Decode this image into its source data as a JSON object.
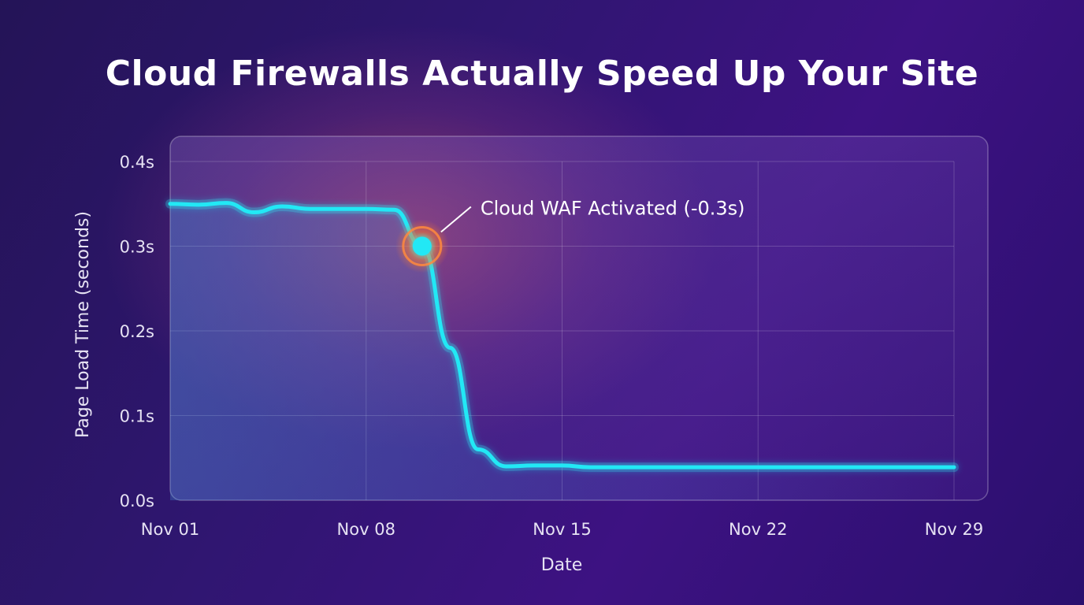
{
  "chart_data": {
    "type": "line",
    "title": "Cloud Firewalls Actually Speed Up Your Site",
    "xlabel": "Date",
    "ylabel": "Page Load Time (seconds)",
    "ylim": [
      0,
      0.4
    ],
    "y_ticks": [
      0.0,
      0.1,
      0.2,
      0.3,
      0.4
    ],
    "y_tick_labels": [
      "0.0s",
      "0.1s",
      "0.2s",
      "0.3s",
      "0.4s"
    ],
    "x_ticks": [
      "2023-11-01",
      "2023-11-08",
      "2023-11-15",
      "2023-11-22",
      "2023-11-29"
    ],
    "x_tick_labels": [
      "Nov 01",
      "Nov 08",
      "Nov 15",
      "Nov 22",
      "Nov 29"
    ],
    "grid": true,
    "line_color": "#22e8f5",
    "annotation_color": "#ff8a3d",
    "series": [
      {
        "x": [
          "2023-11-01",
          "2023-11-02",
          "2023-11-03",
          "2023-11-04",
          "2023-11-05",
          "2023-11-06",
          "2023-11-07",
          "2023-11-08",
          "2023-11-09",
          "2023-11-10",
          "2023-11-11",
          "2023-11-12",
          "2023-11-13",
          "2023-11-14",
          "2023-11-15",
          "2023-11-16",
          "2023-11-17",
          "2023-11-18",
          "2023-11-22",
          "2023-11-29"
        ],
        "y": [
          0.35,
          0.349,
          0.351,
          0.34,
          0.347,
          0.344,
          0.344,
          0.344,
          0.343,
          0.3,
          0.18,
          0.06,
          0.04,
          0.041,
          0.041,
          0.039,
          0.039,
          0.039,
          0.039,
          0.039
        ]
      }
    ],
    "annotations": [
      {
        "x": "2023-11-10",
        "y": 0.3,
        "text": "Cloud WAF Activated (-0.3s)"
      }
    ]
  }
}
